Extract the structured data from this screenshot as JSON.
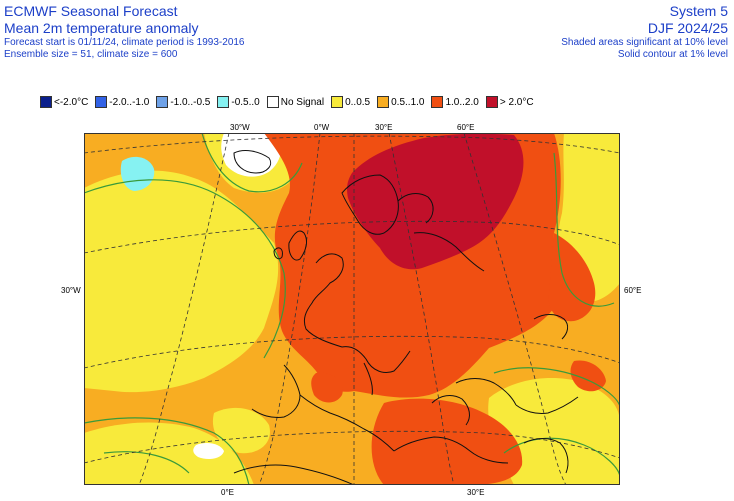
{
  "header": {
    "title": "ECMWF Seasonal Forecast",
    "subtitle": "Mean 2m temperature anomaly",
    "forecast_info": "Forecast start is 01/11/24, climate period is 1993-2016",
    "ensemble_info": "Ensemble size = 51, climate size = 600",
    "system": "System 5",
    "period": "DJF 2024/25",
    "significance_shaded": "Shaded areas significant at 10% level",
    "significance_contour": "Solid contour at 1% level"
  },
  "legend": [
    {
      "label": "<-2.0°C",
      "color": "#0b1f8c"
    },
    {
      "label": "-2.0..-1.0",
      "color": "#3262e6"
    },
    {
      "label": "-1.0..-0.5",
      "color": "#6fa2e8"
    },
    {
      "label": "-0.5..0",
      "color": "#86f2f2"
    },
    {
      "label": "No Signal",
      "color": "#ffffff"
    },
    {
      "label": "0..0.5",
      "color": "#f8ea3b"
    },
    {
      "label": "0.5..1.0",
      "color": "#f8ad22"
    },
    {
      "label": "1.0..2.0",
      "color": "#f04f12"
    },
    {
      "label": "> 2.0°C",
      "color": "#c1102a"
    }
  ],
  "graticule_labels": {
    "top": [
      "30°W",
      "0°W",
      "30°E",
      "60°E"
    ],
    "left": "30°W",
    "right": "60°E",
    "bottom": [
      "0°E",
      "30°E"
    ]
  },
  "colors": {
    "header_text": "#1c3fc8",
    "contour": "#3a9a3a",
    "coast": "#111111"
  }
}
